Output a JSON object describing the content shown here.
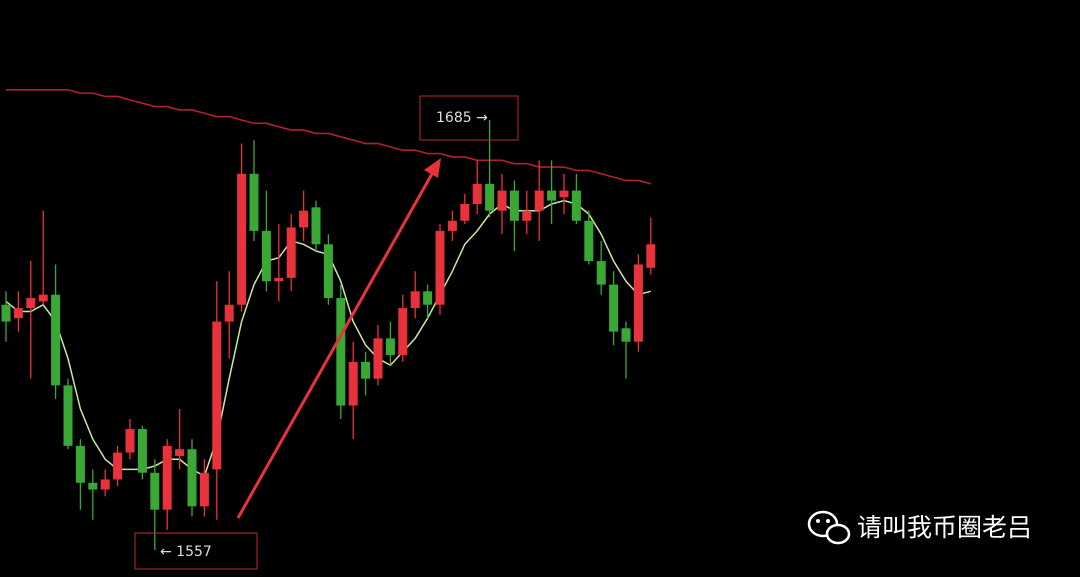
{
  "chart_data": {
    "type": "candlestick",
    "open": [
      1630,
      1626,
      1629,
      1631,
      1633,
      1606,
      1588,
      1577,
      1575,
      1578,
      1586,
      1593,
      1580,
      1569,
      1585,
      1587,
      1570,
      1581,
      1625,
      1630,
      1669,
      1652,
      1637,
      1638,
      1653,
      1659,
      1648,
      1632,
      1600,
      1613,
      1608,
      1620,
      1615,
      1629,
      1634,
      1630,
      1652,
      1655,
      1660,
      1666,
      1658,
      1664,
      1655,
      1658,
      1664,
      1662,
      1664,
      1655,
      1643,
      1636,
      1623,
      1619,
      1641
    ],
    "high": [
      1634,
      1634,
      1643,
      1658,
      1642,
      1608,
      1590,
      1581,
      1581,
      1588,
      1596,
      1594,
      1584,
      1590,
      1599,
      1590,
      1584,
      1637,
      1640,
      1678,
      1679,
      1664,
      1654,
      1657,
      1664,
      1661,
      1651,
      1636,
      1619,
      1616,
      1624,
      1625,
      1633,
      1640,
      1636,
      1654,
      1658,
      1663,
      1673,
      1685,
      1669,
      1667,
      1664,
      1673,
      1673,
      1669,
      1669,
      1658,
      1649,
      1640,
      1625,
      1645,
      1656
    ],
    "low": [
      1619,
      1622,
      1608,
      1630,
      1602,
      1587,
      1569,
      1566,
      1573,
      1576,
      1584,
      1578,
      1557,
      1563,
      1581,
      1567,
      1567,
      1566,
      1614,
      1628,
      1649,
      1634,
      1631,
      1634,
      1649,
      1646,
      1630,
      1596,
      1590,
      1603,
      1606,
      1612,
      1613,
      1626,
      1626,
      1627,
      1649,
      1654,
      1657,
      1656,
      1651,
      1646,
      1651,
      1649,
      1654,
      1657,
      1654,
      1642,
      1633,
      1618,
      1608,
      1616,
      1639
    ],
    "close": [
      1625,
      1629,
      1632,
      1633,
      1606,
      1588,
      1577,
      1575,
      1578,
      1586,
      1593,
      1580,
      1569,
      1588,
      1587,
      1570,
      1580,
      1625,
      1630,
      1669,
      1652,
      1637,
      1638,
      1653,
      1658,
      1648,
      1632,
      1600,
      1613,
      1608,
      1620,
      1615,
      1629,
      1634,
      1630,
      1652,
      1655,
      1660,
      1666,
      1658,
      1664,
      1655,
      1658,
      1664,
      1661,
      1664,
      1655,
      1643,
      1636,
      1622,
      1619,
      1642,
      1648
    ],
    "up_color": "#e8323c",
    "down_color": "#3aa835",
    "series": [
      {
        "color": "#c9e8a2",
        "values": [
          1631,
          1628,
          1628,
          1630,
          1625,
          1614,
          1599,
          1590,
          1584,
          1581,
          1581,
          1581,
          1582,
          1584,
          1584,
          1581,
          1579,
          1590,
          1608,
          1625,
          1636,
          1643,
          1644,
          1649,
          1648,
          1646,
          1645,
          1637,
          1625,
          1618,
          1614,
          1612,
          1616,
          1620,
          1626,
          1633,
          1640,
          1648,
          1652,
          1657,
          1660,
          1658,
          1658,
          1658,
          1660,
          1661,
          1660,
          1657,
          1651,
          1643,
          1637,
          1633,
          1634
        ]
      },
      {
        "color": "#b3202b",
        "values": [
          1694,
          1694,
          1694,
          1694,
          1694,
          1694,
          1693,
          1693,
          1692,
          1692,
          1691,
          1690,
          1689,
          1689,
          1688,
          1688,
          1687,
          1686,
          1686,
          1685,
          1684,
          1684,
          1683,
          1682,
          1682,
          1681,
          1681,
          1680,
          1679,
          1678,
          1678,
          1677,
          1676,
          1676,
          1675,
          1675,
          1674,
          1674,
          1673,
          1673,
          1673,
          1672,
          1672,
          1671,
          1671,
          1671,
          1670,
          1670,
          1669,
          1668,
          1667,
          1667,
          1666
        ]
      }
    ],
    "annotations": [
      {
        "text": "1685 →"
      },
      {
        "text": "← 1557"
      }
    ],
    "watermark": "请叫我币圈老吕"
  }
}
